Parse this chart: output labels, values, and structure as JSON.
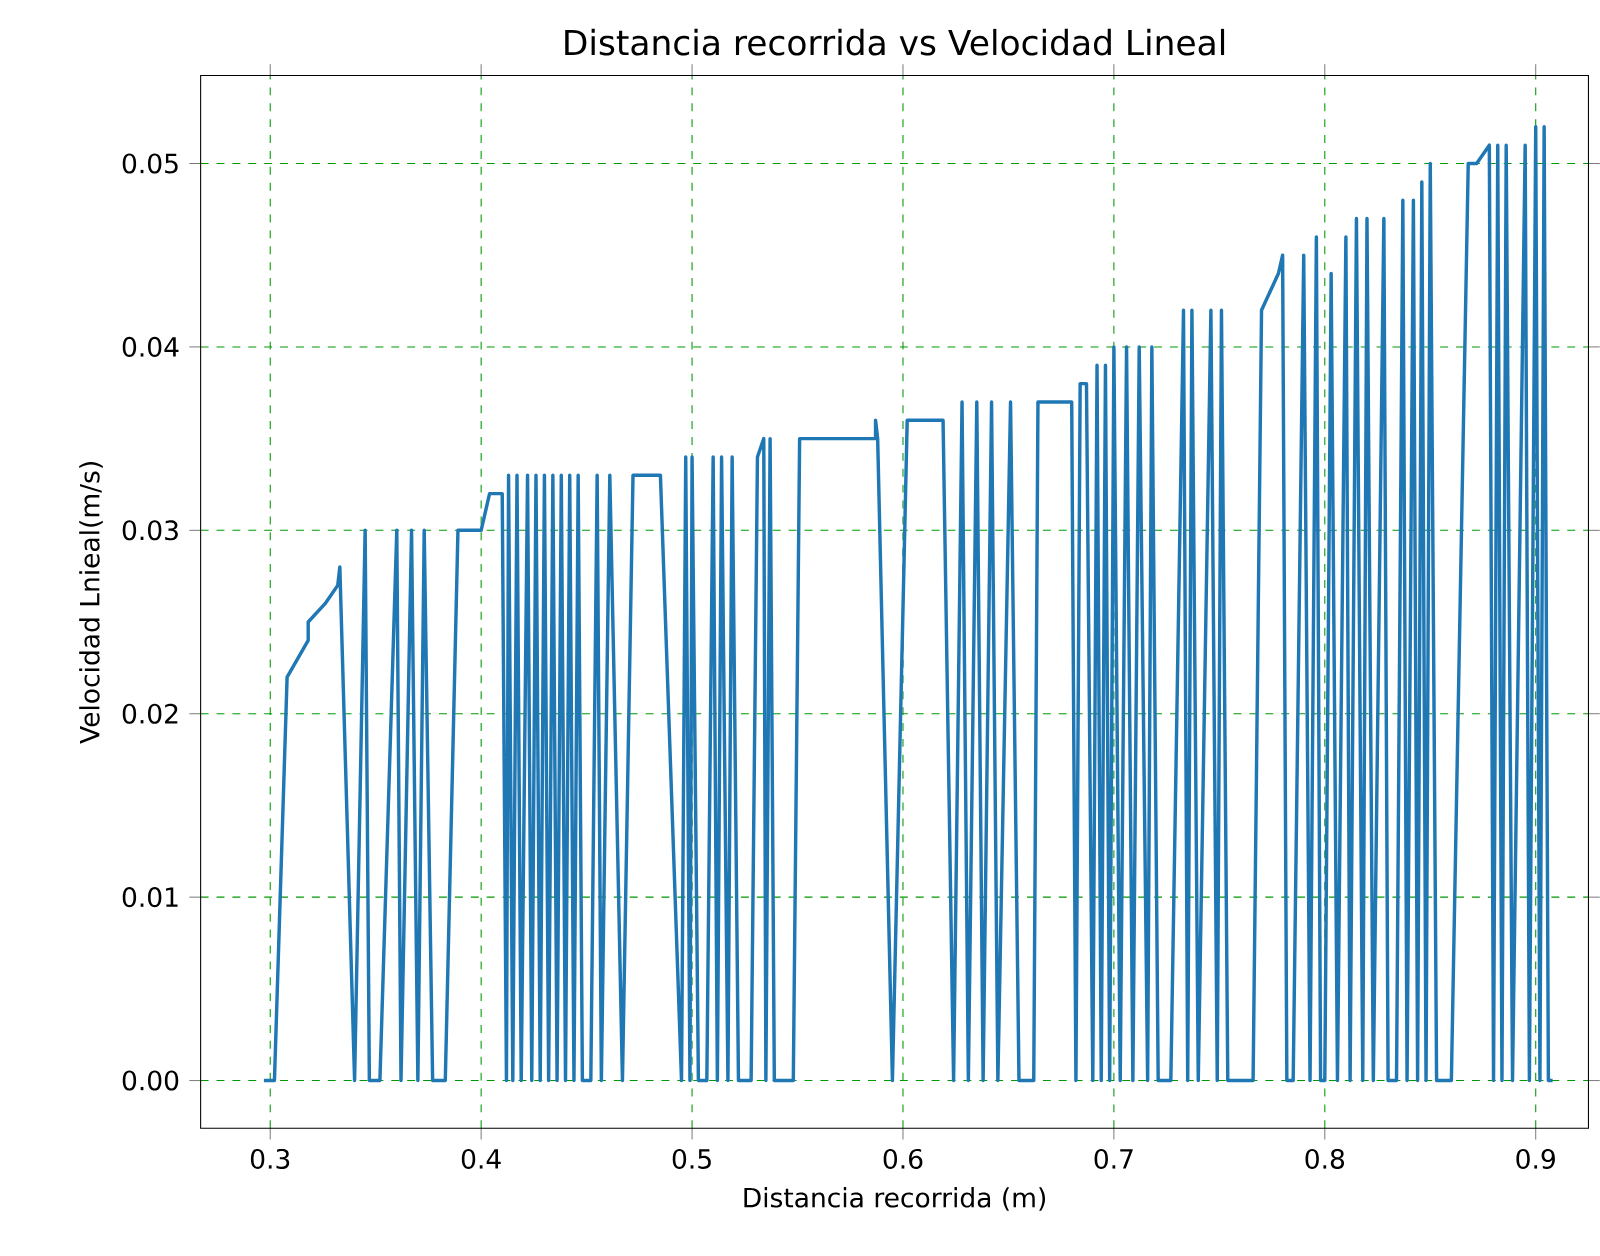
{
  "chart_data": {
    "type": "line",
    "title": "Distancia recorrida vs Velocidad Lineal",
    "xlabel": "Distancia recorrida (m)",
    "ylabel": "Velocidad Lnieal(m/s)",
    "xlim": [
      0.267,
      0.925
    ],
    "ylim": [
      -0.0026,
      0.0548
    ],
    "xticks": [
      0.3,
      0.4,
      0.5,
      0.6,
      0.7,
      0.8,
      0.9
    ],
    "yticks": [
      {
        "value": 0,
        "label": "0.00"
      },
      {
        "value": 0.01,
        "label": "0.01"
      },
      {
        "value": 0.02,
        "label": "0.02"
      },
      {
        "value": 0.03,
        "label": "0.03"
      },
      {
        "value": 0.04,
        "label": "0.04"
      },
      {
        "value": 0.05,
        "label": "0.05"
      }
    ],
    "grid": true,
    "series": [
      {
        "color": "#1f77b4",
        "x": [
          0.297,
          0.302,
          0.308,
          0.318,
          0.318,
          0.326,
          0.332,
          0.333,
          0.34,
          0.345,
          0.347,
          0.352,
          0.36,
          0.362,
          0.367,
          0.37,
          0.373,
          0.377,
          0.383,
          0.389,
          0.4,
          0.404,
          0.41,
          0.412,
          0.413,
          0.415,
          0.417,
          0.419,
          0.422,
          0.424,
          0.426,
          0.428,
          0.43,
          0.432,
          0.434,
          0.436,
          0.438,
          0.44,
          0.442,
          0.444,
          0.446,
          0.448,
          0.452,
          0.455,
          0.457,
          0.461,
          0.467,
          0.472,
          0.485,
          0.495,
          0.497,
          0.499,
          0.5,
          0.503,
          0.507,
          0.51,
          0.512,
          0.514,
          0.517,
          0.519,
          0.522,
          0.528,
          0.531,
          0.534,
          0.535,
          0.537,
          0.539,
          0.548,
          0.551,
          0.587,
          0.587,
          0.588,
          0.595,
          0.602,
          0.619,
          0.624,
          0.628,
          0.631,
          0.635,
          0.638,
          0.642,
          0.645,
          0.651,
          0.655,
          0.662,
          0.664,
          0.68,
          0.682,
          0.684,
          0.687,
          0.69,
          0.692,
          0.694,
          0.696,
          0.698,
          0.7,
          0.703,
          0.706,
          0.709,
          0.712,
          0.716,
          0.718,
          0.721,
          0.727,
          0.733,
          0.735,
          0.737,
          0.74,
          0.746,
          0.749,
          0.751,
          0.754,
          0.766,
          0.77,
          0.778,
          0.78,
          0.782,
          0.785,
          0.79,
          0.793,
          0.796,
          0.798,
          0.8,
          0.803,
          0.806,
          0.81,
          0.812,
          0.815,
          0.818,
          0.82,
          0.823,
          0.828,
          0.83,
          0.834,
          0.837,
          0.839,
          0.842,
          0.844,
          0.846,
          0.848,
          0.85,
          0.853,
          0.86,
          0.868,
          0.872,
          0.878,
          0.88,
          0.882,
          0.884,
          0.886,
          0.889,
          0.895,
          0.897,
          0.9,
          0.902,
          0.904,
          0.906,
          0.908
        ],
        "values": [
          0,
          0,
          0.022,
          0.024,
          0.025,
          0.026,
          0.027,
          0.028,
          0,
          0.03,
          0,
          0,
          0.03,
          0,
          0.03,
          0,
          0.03,
          0,
          0,
          0.03,
          0.03,
          0.032,
          0.032,
          0,
          0.033,
          0,
          0.033,
          0,
          0.033,
          0,
          0.033,
          0,
          0.033,
          0,
          0.033,
          0,
          0.033,
          0,
          0.033,
          0,
          0.033,
          0,
          0,
          0.033,
          0,
          0.033,
          0,
          0.033,
          0.033,
          0,
          0.034,
          0,
          0.034,
          0,
          0,
          0.034,
          0,
          0.034,
          0,
          0.034,
          0,
          0,
          0.034,
          0.035,
          0,
          0.035,
          0,
          0,
          0.035,
          0.035,
          0.036,
          0.035,
          0,
          0.036,
          0.036,
          0,
          0.037,
          0,
          0.037,
          0,
          0.037,
          0,
          0.037,
          0,
          0,
          0.037,
          0.037,
          0,
          0.038,
          0.038,
          0,
          0.039,
          0,
          0.039,
          0,
          0.04,
          0,
          0.04,
          0,
          0.04,
          0,
          0.04,
          0,
          0,
          0.042,
          0,
          0.042,
          0,
          0.042,
          0,
          0.042,
          0,
          0,
          0.042,
          0.044,
          0.045,
          0,
          0,
          0.045,
          0,
          0.046,
          0,
          0,
          0.044,
          0,
          0.046,
          0,
          0.047,
          0,
          0.047,
          0,
          0.047,
          0,
          0,
          0.048,
          0,
          0.048,
          0,
          0.049,
          0,
          0.05,
          0,
          0,
          0.05,
          0.05,
          0.051,
          0,
          0.051,
          0,
          0.051,
          0,
          0.051,
          0,
          0.052,
          0,
          0.052,
          0,
          0
        ]
      }
    ]
  }
}
